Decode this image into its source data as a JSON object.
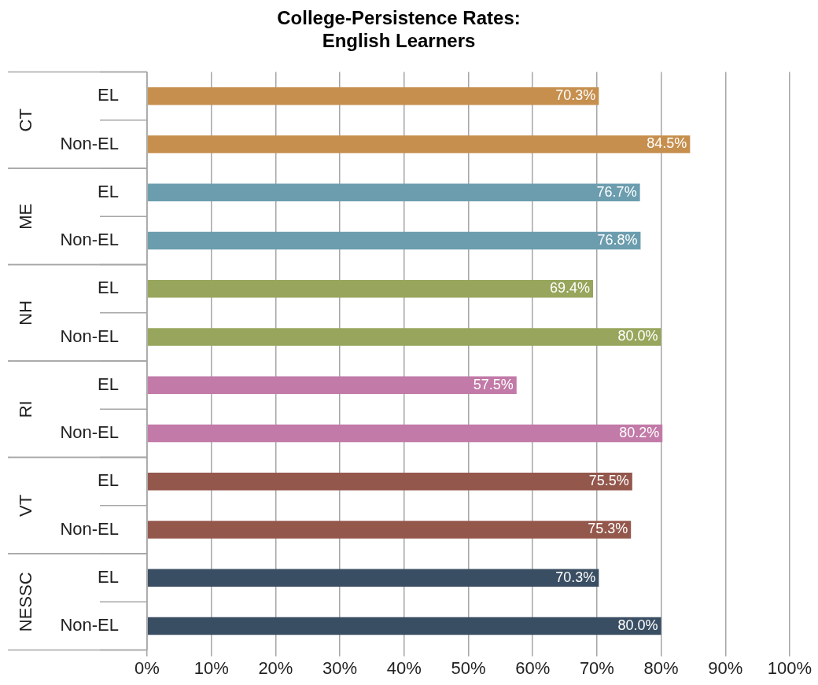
{
  "chart_data": {
    "type": "bar",
    "orientation": "horizontal",
    "title": "College-Persistence Rates:\nEnglish Learners",
    "categories": [
      "EL",
      "Non-EL",
      "EL",
      "Non-EL",
      "EL",
      "Non-EL",
      "EL",
      "Non-EL",
      "EL",
      "Non-EL",
      "EL",
      "Non-EL"
    ],
    "values": [
      70.3,
      84.5,
      76.7,
      76.8,
      69.4,
      80.0,
      57.5,
      80.2,
      75.5,
      75.3,
      70.3,
      80.0
    ],
    "value_labels": [
      "70.3%",
      "84.5%",
      "76.7%",
      "76.8%",
      "69.4%",
      "80.0%",
      "57.5%",
      "80.2%",
      "75.5%",
      "75.3%",
      "70.3%",
      "80.0%"
    ],
    "colors": [
      "#c68f4e",
      "#c68f4e",
      "#6b9dae",
      "#6b9dae",
      "#97a65c",
      "#97a65c",
      "#c27aa8",
      "#c27aa8",
      "#94574c",
      "#94574c",
      "#3a4e63",
      "#3a4e63"
    ],
    "annotations": [
      "CT",
      "ME",
      "NH",
      "RI",
      "VT",
      "NESSC"
    ],
    "xlim": [
      0,
      100
    ],
    "xticks": [
      {
        "value": 0,
        "label": "0%"
      },
      {
        "value": 10,
        "label": "10%"
      },
      {
        "value": 20,
        "label": "20%"
      },
      {
        "value": 30,
        "label": "30%"
      },
      {
        "value": 40,
        "label": "40%"
      },
      {
        "value": 50,
        "label": "50%"
      },
      {
        "value": 60,
        "label": "60%"
      },
      {
        "value": 70,
        "label": "70%"
      },
      {
        "value": 80,
        "label": "80%"
      },
      {
        "value": 90,
        "label": "90%"
      },
      {
        "value": 100,
        "label": "100%"
      }
    ],
    "grid": "x",
    "legend": false
  }
}
